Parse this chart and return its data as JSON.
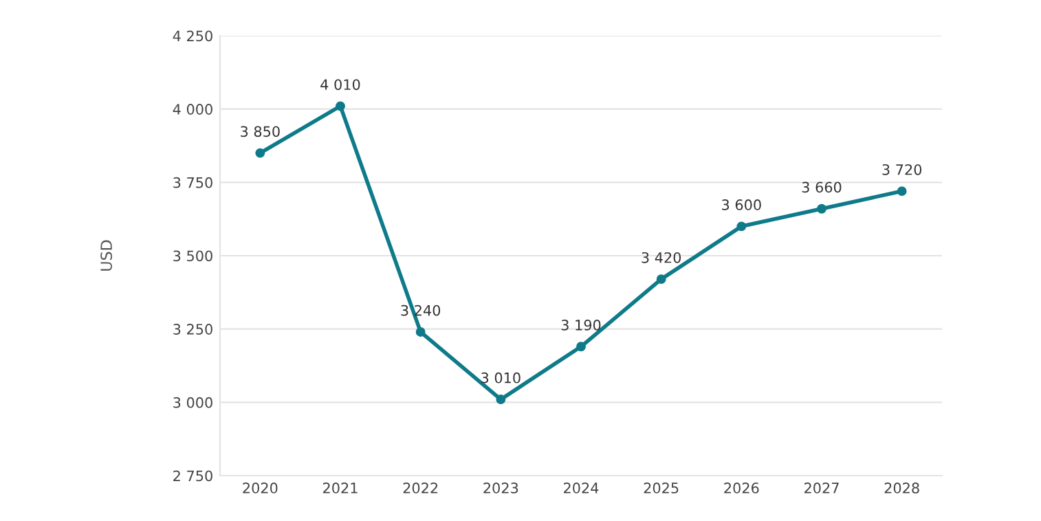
{
  "chart_data": {
    "type": "line",
    "ylabel": "USD",
    "categories": [
      "2020",
      "2021",
      "2022",
      "2023",
      "2024",
      "2025",
      "2026",
      "2027",
      "2028"
    ],
    "series": [
      {
        "color": "#0f7b8a",
        "values": [
          3850,
          4010,
          3240,
          3010,
          3190,
          3420,
          3600,
          3660,
          3720
        ],
        "value_labels": [
          "3 850",
          "4 010",
          "3 240",
          "3 010",
          "3 190",
          "3 420",
          "3 600",
          "3 660",
          "3 720"
        ]
      }
    ],
    "ylim": [
      2750,
      4250
    ],
    "yticks": [
      {
        "value": 2750,
        "label": "2 750"
      },
      {
        "value": 3000,
        "label": "3 000"
      },
      {
        "value": 3250,
        "label": "3 250"
      },
      {
        "value": 3500,
        "label": "3 500"
      },
      {
        "value": 3750,
        "label": "3 750"
      },
      {
        "value": 4000,
        "label": "4 000"
      },
      {
        "value": 4250,
        "label": "4 250"
      }
    ],
    "grid": "y",
    "marker": "circle",
    "line_style": "solid",
    "legend": false
  }
}
